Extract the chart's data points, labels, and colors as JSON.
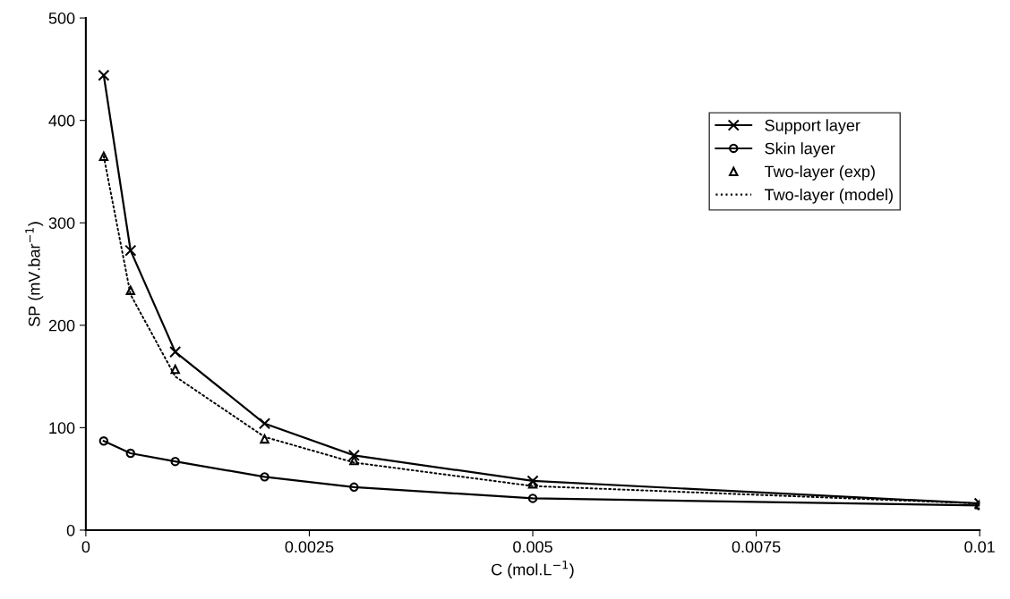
{
  "chart_data": {
    "type": "line",
    "xlabel": "C (mol.L$^{−1}$)",
    "ylabel": "SP (mV.bar$^{−1}$)",
    "xlim": [
      0,
      0.01
    ],
    "xticks": [
      0,
      0.0025,
      0.005,
      0.0075,
      0.01
    ],
    "ylim": [
      0,
      500
    ],
    "yticks": [
      0,
      100,
      200,
      300,
      400,
      500
    ],
    "grid": false,
    "legend": "right",
    "series": [
      {
        "name": "Support layer",
        "color": "#000000",
        "marker": "cross",
        "line_style": "solid",
        "x": [
          0.0002,
          0.0005,
          0.001,
          0.002,
          0.003,
          0.005,
          0.01
        ],
        "values": [
          444,
          273,
          174,
          104,
          73,
          48,
          26
        ]
      },
      {
        "name": "Skin layer",
        "color": "#000000",
        "marker": "circle",
        "line_style": "solid",
        "x": [
          0.0002,
          0.0005,
          0.001,
          0.002,
          0.003,
          0.005,
          0.01
        ],
        "values": [
          87,
          75,
          67,
          52,
          42,
          31,
          24
        ]
      },
      {
        "name": "Two-layer (exp)",
        "type": "scatter",
        "color": "#000000",
        "marker": "triangle",
        "x": [
          0.0002,
          0.0005,
          0.001,
          0.002,
          0.003,
          0.005,
          0.01
        ],
        "values": [
          365,
          234,
          157,
          89,
          68,
          45,
          25
        ]
      },
      {
        "name": "Two-layer (model)",
        "color": "#000000",
        "marker": "none",
        "line_style": "dotted",
        "x": [
          0.0002,
          0.0005,
          0.001,
          0.002,
          0.003,
          0.005,
          0.01
        ],
        "values": [
          365,
          230,
          150,
          91,
          66,
          43,
          26
        ]
      }
    ]
  }
}
